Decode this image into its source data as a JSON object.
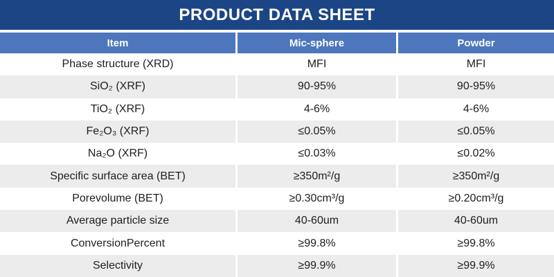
{
  "banner": {
    "title": "PRODUCT DATA SHEET"
  },
  "colors": {
    "banner_bg": "#1C4586",
    "header_bg": "#4D76BC",
    "row_alt_bg": "#ECECEC",
    "text": "#1E1E1E",
    "header_text": "#FFFFFF"
  },
  "table": {
    "headers": [
      "Item",
      "Mic-sphere",
      "Powder"
    ],
    "rows": [
      {
        "item": "Phase structure (XRD)",
        "mic_sphere": "MFI",
        "powder": "MFI"
      },
      {
        "item": "SiO₂ (XRF)",
        "mic_sphere": "90-95%",
        "powder": "90-95%"
      },
      {
        "item": "TiO₂ (XRF)",
        "mic_sphere": "4-6%",
        "powder": "4-6%"
      },
      {
        "item": "Fe₂O₃ (XRF)",
        "mic_sphere": "≤0.05%",
        "powder": "≤0.05%"
      },
      {
        "item": "Na₂O (XRF)",
        "mic_sphere": "≤0.03%",
        "powder": "≤0.02%"
      },
      {
        "item": "Specific surface area (BET)",
        "mic_sphere": "≥350m²/g",
        "powder": "≥350m²/g"
      },
      {
        "item": "Porevolume (BET)",
        "mic_sphere": "≥0.30cm³/g",
        "powder": "≥0.20cm³/g"
      },
      {
        "item": "Average particle size",
        "mic_sphere": "40-60um",
        "powder": "40-60um"
      },
      {
        "item": "ConversionPercent",
        "mic_sphere": "≥99.8%",
        "powder": "≥99.8%"
      },
      {
        "item": "Selectivity",
        "mic_sphere": "≥99.9%",
        "powder": "≥99.9%"
      }
    ]
  }
}
